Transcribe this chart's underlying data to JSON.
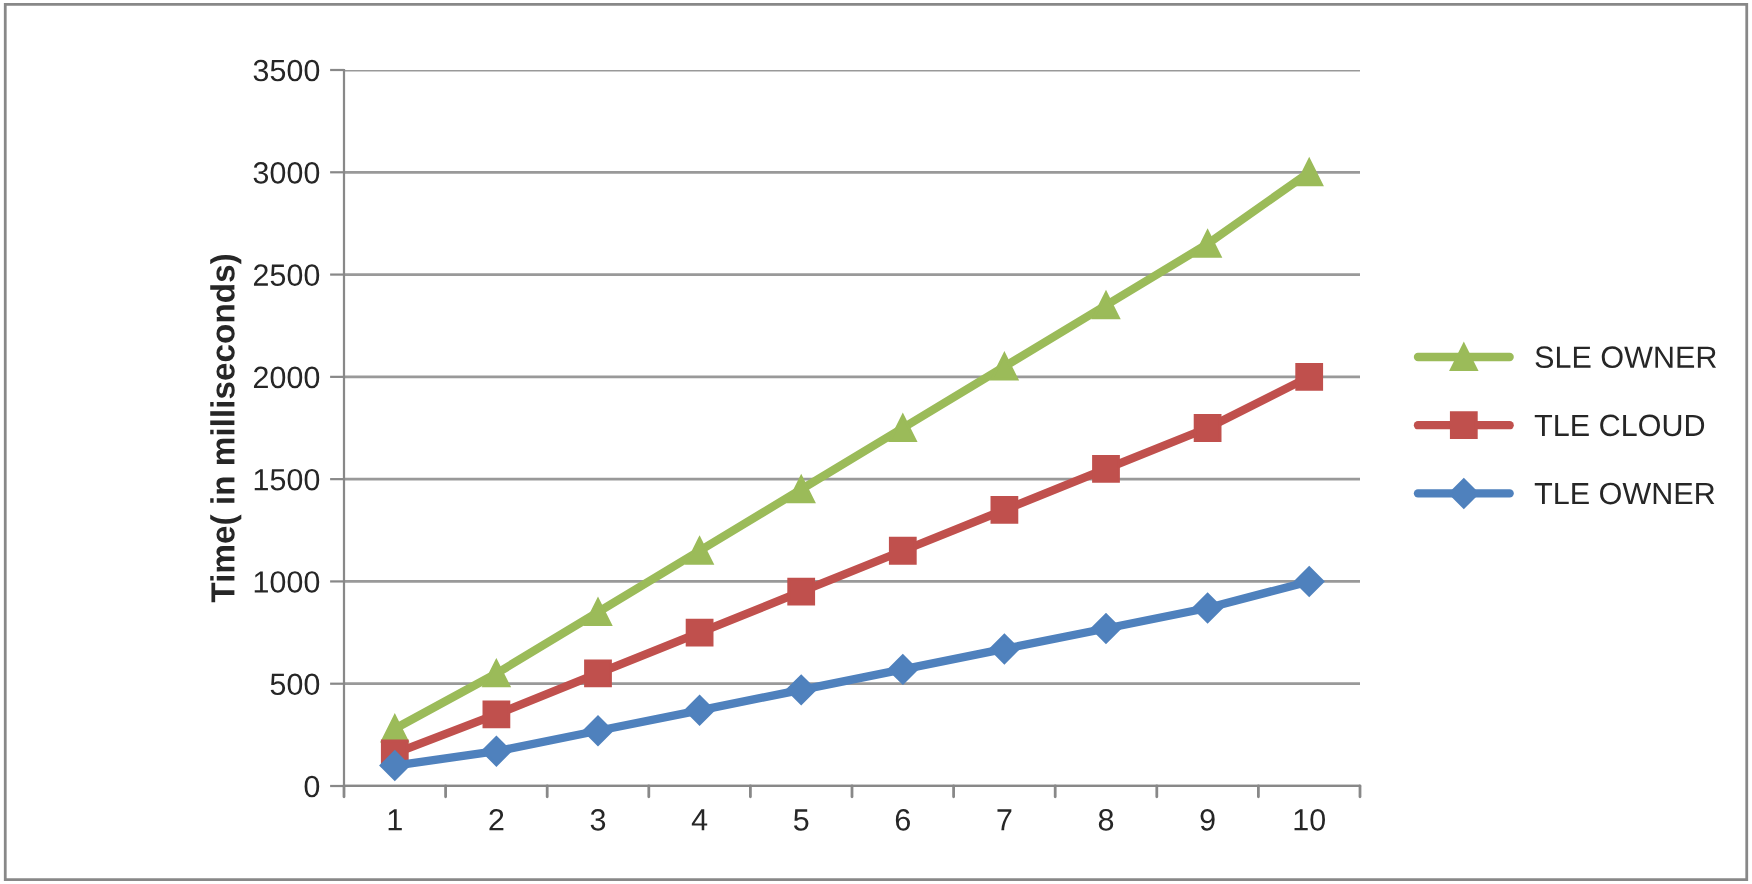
{
  "chart_data": {
    "type": "line",
    "ylabel": "Time( in milliseconds)",
    "categories": [
      "1",
      "2",
      "3",
      "4",
      "5",
      "6",
      "7",
      "8",
      "9",
      "10"
    ],
    "series": [
      {
        "name": "SLE OWNER",
        "color": "#9bbb59",
        "marker": "triangle",
        "values": [
          280,
          550,
          850,
          1150,
          1450,
          1750,
          2050,
          2350,
          2650,
          3000
        ]
      },
      {
        "name": "TLE CLOUD",
        "color": "#c0504d",
        "marker": "square",
        "values": [
          160,
          350,
          550,
          750,
          950,
          1150,
          1350,
          1550,
          1750,
          2000
        ]
      },
      {
        "name": "TLE OWNER",
        "color": "#4f81bd",
        "marker": "diamond",
        "values": [
          100,
          170,
          270,
          370,
          470,
          570,
          670,
          770,
          870,
          1000
        ]
      }
    ],
    "ylim": [
      0,
      3500
    ],
    "yticks": [
      0,
      500,
      1000,
      1500,
      2000,
      2500,
      3000,
      3500
    ],
    "grid": "y",
    "legend": "right",
    "line_style": "solid"
  }
}
